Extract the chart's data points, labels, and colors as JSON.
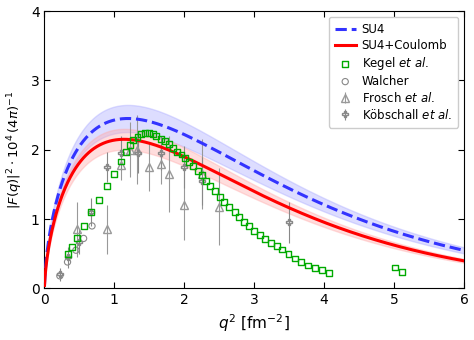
{
  "xlabel": "$q^2$ [fm$^{-2}$]",
  "ylabel": "$|F(q)|^2 \\cdot 10^4\\,(4\\pi)^{-1}$",
  "xlim": [
    0,
    6
  ],
  "ylim": [
    0,
    4
  ],
  "xticks": [
    0,
    1,
    2,
    3,
    4,
    5,
    6
  ],
  "yticks": [
    0,
    1,
    2,
    3,
    4
  ],
  "su4_color": "#3333ff",
  "su4_coulomb_color": "#ff0000",
  "su4_band_color": "#aaaaff",
  "su4_coulomb_band_color": "#ffaaaa",
  "kegel_color": "#00aa00",
  "frosch_color": "#999999",
  "kobschall_color": "#888888",
  "walcher_color": "#888888",
  "kegel_data": [
    [
      0.34,
      0.5
    ],
    [
      0.4,
      0.6
    ],
    [
      0.46,
      0.72
    ],
    [
      0.56,
      0.9
    ],
    [
      0.67,
      1.1
    ],
    [
      0.78,
      1.28
    ],
    [
      0.89,
      1.47
    ],
    [
      1.0,
      1.65
    ],
    [
      1.1,
      1.83
    ],
    [
      1.17,
      1.97
    ],
    [
      1.22,
      2.07
    ],
    [
      1.27,
      2.14
    ],
    [
      1.33,
      2.18
    ],
    [
      1.38,
      2.22
    ],
    [
      1.44,
      2.24
    ],
    [
      1.5,
      2.24
    ],
    [
      1.55,
      2.22
    ],
    [
      1.6,
      2.2
    ],
    [
      1.67,
      2.16
    ],
    [
      1.72,
      2.13
    ],
    [
      1.78,
      2.08
    ],
    [
      1.84,
      2.03
    ],
    [
      1.9,
      1.97
    ],
    [
      1.96,
      1.93
    ],
    [
      2.01,
      1.88
    ],
    [
      2.07,
      1.82
    ],
    [
      2.13,
      1.76
    ],
    [
      2.2,
      1.69
    ],
    [
      2.25,
      1.63
    ],
    [
      2.31,
      1.55
    ],
    [
      2.37,
      1.48
    ],
    [
      2.44,
      1.4
    ],
    [
      2.51,
      1.32
    ],
    [
      2.57,
      1.24
    ],
    [
      2.64,
      1.17
    ],
    [
      2.72,
      1.1
    ],
    [
      2.78,
      1.03
    ],
    [
      2.85,
      0.96
    ],
    [
      2.93,
      0.9
    ],
    [
      3.0,
      0.83
    ],
    [
      3.08,
      0.77
    ],
    [
      3.16,
      0.71
    ],
    [
      3.24,
      0.66
    ],
    [
      3.32,
      0.61
    ],
    [
      3.4,
      0.56
    ],
    [
      3.49,
      0.49
    ],
    [
      3.58,
      0.43
    ],
    [
      3.67,
      0.38
    ],
    [
      3.77,
      0.33
    ],
    [
      3.87,
      0.29
    ],
    [
      3.97,
      0.26
    ],
    [
      4.07,
      0.22
    ],
    [
      5.01,
      0.3
    ],
    [
      5.11,
      0.24
    ]
  ],
  "frosch_data": [
    [
      0.46,
      0.85,
      0.4
    ],
    [
      0.89,
      0.85,
      0.35
    ],
    [
      1.1,
      1.78,
      0.22
    ],
    [
      1.22,
      2.0,
      0.4
    ],
    [
      1.33,
      2.0,
      0.5
    ],
    [
      1.5,
      1.75,
      0.35
    ],
    [
      1.67,
      1.8,
      0.3
    ],
    [
      1.78,
      1.65,
      0.55
    ],
    [
      2.0,
      1.2,
      0.5
    ],
    [
      2.25,
      1.65,
      0.5
    ],
    [
      2.5,
      1.18,
      0.55
    ]
  ],
  "kobschall_data": [
    [
      0.22,
      0.2,
      0.1
    ],
    [
      0.34,
      0.45,
      0.15
    ],
    [
      0.5,
      0.67,
      0.18
    ],
    [
      0.67,
      1.1,
      0.2
    ],
    [
      0.89,
      1.75,
      0.22
    ],
    [
      1.1,
      1.95,
      0.25
    ],
    [
      1.34,
      1.95,
      0.28
    ],
    [
      1.67,
      1.95,
      0.25
    ],
    [
      2.0,
      1.75,
      0.3
    ],
    [
      2.25,
      1.55,
      0.35
    ],
    [
      3.5,
      0.95,
      0.3
    ]
  ],
  "walcher_data": [
    [
      0.22,
      0.18
    ],
    [
      0.33,
      0.38
    ],
    [
      0.45,
      0.55
    ],
    [
      0.56,
      0.72
    ],
    [
      0.68,
      0.9
    ]
  ],
  "figsize": [
    4.74,
    3.4
  ],
  "dpi": 100
}
